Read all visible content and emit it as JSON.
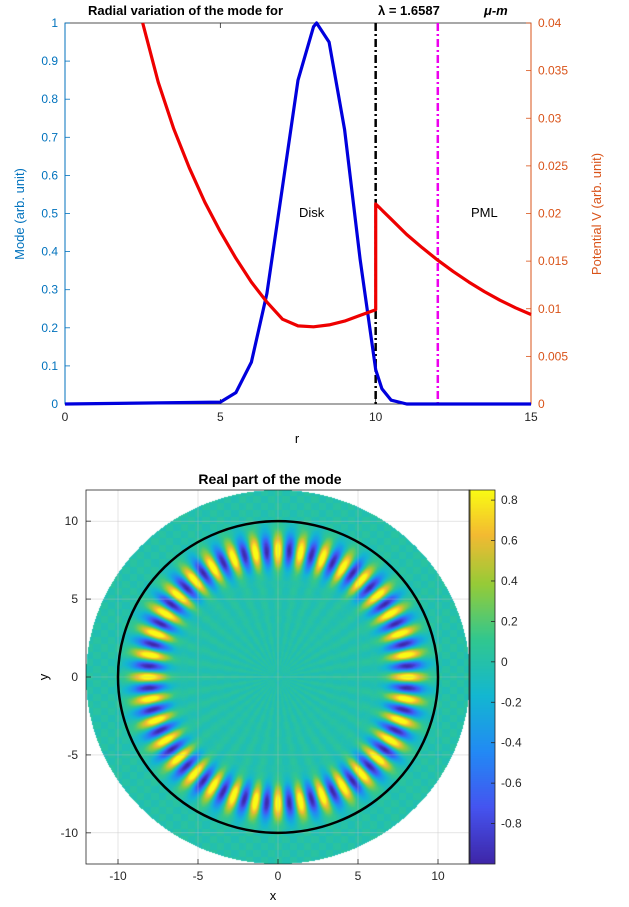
{
  "colors": {
    "mode": "#0000dd",
    "potential": "#ee0000",
    "left_axis": "#0072bd",
    "right_axis": "#d95319",
    "interface_line": "#000000",
    "pml_line": "#ee00ee",
    "circle": "#000000"
  },
  "chart_data": [
    {
      "type": "line",
      "title_text": "Radial variation of the mode for",
      "title_lambda": "λ = 1.6587",
      "title_unit": "μ-m",
      "xlabel": "r",
      "ylabel_left": "Mode (arb. unit)",
      "ylabel_right": "Potential V  (arb. unit)",
      "xlim": [
        0,
        15
      ],
      "ylim_left": [
        0,
        1
      ],
      "ylim_right": [
        0,
        0.04
      ],
      "x_ticks": [
        "0",
        "5",
        "10",
        "15"
      ],
      "y_left_ticks": [
        "0",
        "0.1",
        "0.2",
        "0.3",
        "0.4",
        "0.5",
        "0.6",
        "0.7",
        "0.8",
        "0.9",
        "1"
      ],
      "y_right_ticks": [
        "0",
        "0.005",
        "0.01",
        "0.015",
        "0.02",
        "0.025",
        "0.03",
        "0.035",
        "0.04"
      ],
      "annotations": [
        "Disk",
        "PML"
      ],
      "vertical_lines": [
        10,
        12
      ],
      "series": [
        {
          "axis": "left",
          "x": [
            0,
            5,
            5.5,
            6,
            6.5,
            7,
            7.5,
            8,
            8.1,
            8.5,
            9,
            9.5,
            10,
            10.2,
            10.5,
            11,
            15
          ],
          "y": [
            0,
            0.005,
            0.03,
            0.11,
            0.29,
            0.57,
            0.85,
            0.99,
            1.0,
            0.95,
            0.72,
            0.38,
            0.09,
            0.04,
            0.01,
            0.0,
            0
          ]
        },
        {
          "axis": "right",
          "x": [
            2.5,
            3,
            3.5,
            4,
            4.5,
            5,
            5.5,
            6,
            6.5,
            7,
            7.5,
            8,
            8.5,
            9,
            9.5,
            10,
            10,
            10.5,
            11,
            11.5,
            12,
            12.5,
            13,
            13.5,
            14,
            14.5,
            15
          ],
          "y": [
            0.04,
            0.0338,
            0.0289,
            0.0248,
            0.0212,
            0.0181,
            0.0153,
            0.0128,
            0.0107,
            0.0089,
            0.0082,
            0.0081,
            0.0083,
            0.0087,
            0.0093,
            0.0099,
            0.021,
            0.0194,
            0.0178,
            0.0164,
            0.0151,
            0.0139,
            0.0128,
            0.0118,
            0.0109,
            0.0101,
            0.0094
          ]
        }
      ]
    },
    {
      "type": "heatmap",
      "title": "Real part of the mode",
      "xlabel": "x",
      "ylabel": "y",
      "xlim": [
        -12,
        12
      ],
      "ylim": [
        -12,
        12
      ],
      "x_ticks": [
        "-10",
        "-5",
        "0",
        "5",
        "10"
      ],
      "y_ticks": [
        "10",
        "5",
        "0",
        "-5",
        "-10"
      ],
      "colorbar_ticks": [
        "0.8",
        "0.6",
        "0.4",
        "0.2",
        "0",
        "-0.2",
        "-0.4",
        "-0.6",
        "-0.8"
      ],
      "colorbar_range": [
        -1,
        0.85
      ],
      "colormap": "parula",
      "domain_radius": 12,
      "disk_radius": 10,
      "azimuthal_order": 36,
      "peak_radius": 8.1,
      "grid": true
    }
  ]
}
